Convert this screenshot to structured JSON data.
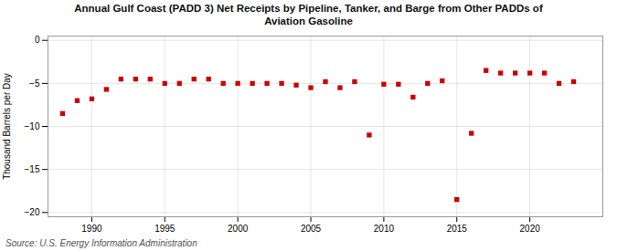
{
  "chart_data": {
    "type": "scatter",
    "title": "Annual Gulf Coast (PADD 3) Net Receipts by Pipeline, Tanker, and Barge from Other PADDs of\nAviation Gasoline",
    "ylabel": "Thousand Barrels per Day",
    "source": "Source: U.S. Energy Information Administration",
    "color": "#cc0000",
    "marker": "square",
    "grid": true,
    "x": [
      1988,
      1989,
      1990,
      1991,
      1992,
      1993,
      1994,
      1995,
      1996,
      1997,
      1998,
      1999,
      2000,
      2001,
      2002,
      2003,
      2004,
      2005,
      2006,
      2007,
      2008,
      2009,
      2010,
      2011,
      2012,
      2013,
      2014,
      2015,
      2016,
      2017,
      2018,
      2019,
      2020,
      2021,
      2022,
      2023
    ],
    "values": [
      -8.5,
      -7.0,
      -6.8,
      -5.7,
      -4.5,
      -4.5,
      -4.5,
      -5.0,
      -5.0,
      -4.5,
      -4.5,
      -5.0,
      -5.0,
      -5.0,
      -5.0,
      -5.0,
      -5.2,
      -5.5,
      -4.8,
      -5.5,
      -4.8,
      -11.0,
      -5.1,
      -5.1,
      -6.6,
      -5.0,
      -4.7,
      -18.5,
      -10.8,
      -3.5,
      -3.8,
      -3.8,
      -3.8,
      -3.8,
      -5.0,
      -4.8
    ],
    "xlim": [
      1987,
      2025
    ],
    "ylim": [
      -20.5,
      0.5
    ],
    "yticks": [
      0,
      -5,
      -10,
      -15,
      -20
    ],
    "xticks": [
      1990,
      1995,
      2000,
      2005,
      2010,
      2015,
      2020
    ]
  }
}
